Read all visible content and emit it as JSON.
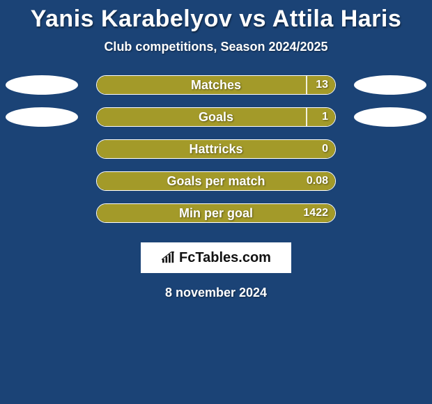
{
  "title": "Yanis Karabelyov vs Attila Haris",
  "subtitle": "Club competitions, Season 2024/2025",
  "date": "8 november 2024",
  "logo_text": "FcTables.com",
  "background_color": "#1b4376",
  "oval_color": "#ffffff",
  "bar_border_color": "#ffffff",
  "left_color": "#a39a29",
  "right_color": "#a39a29",
  "label_color": "#ffffff",
  "label_fontsize": 18,
  "value_fontsize": 16,
  "stats": [
    {
      "label": "Matches",
      "left_value": "",
      "right_value": "13",
      "left_pct": 88,
      "show_left_oval": true,
      "show_right_oval": true
    },
    {
      "label": "Goals",
      "left_value": "",
      "right_value": "1",
      "left_pct": 88,
      "show_left_oval": true,
      "show_right_oval": true
    },
    {
      "label": "Hattricks",
      "left_value": "",
      "right_value": "0",
      "left_pct": 100,
      "show_left_oval": false,
      "show_right_oval": false
    },
    {
      "label": "Goals per match",
      "left_value": "",
      "right_value": "0.08",
      "left_pct": 100,
      "show_left_oval": false,
      "show_right_oval": false
    },
    {
      "label": "Min per goal",
      "left_value": "",
      "right_value": "1422",
      "left_pct": 100,
      "show_left_oval": false,
      "show_right_oval": false
    }
  ]
}
